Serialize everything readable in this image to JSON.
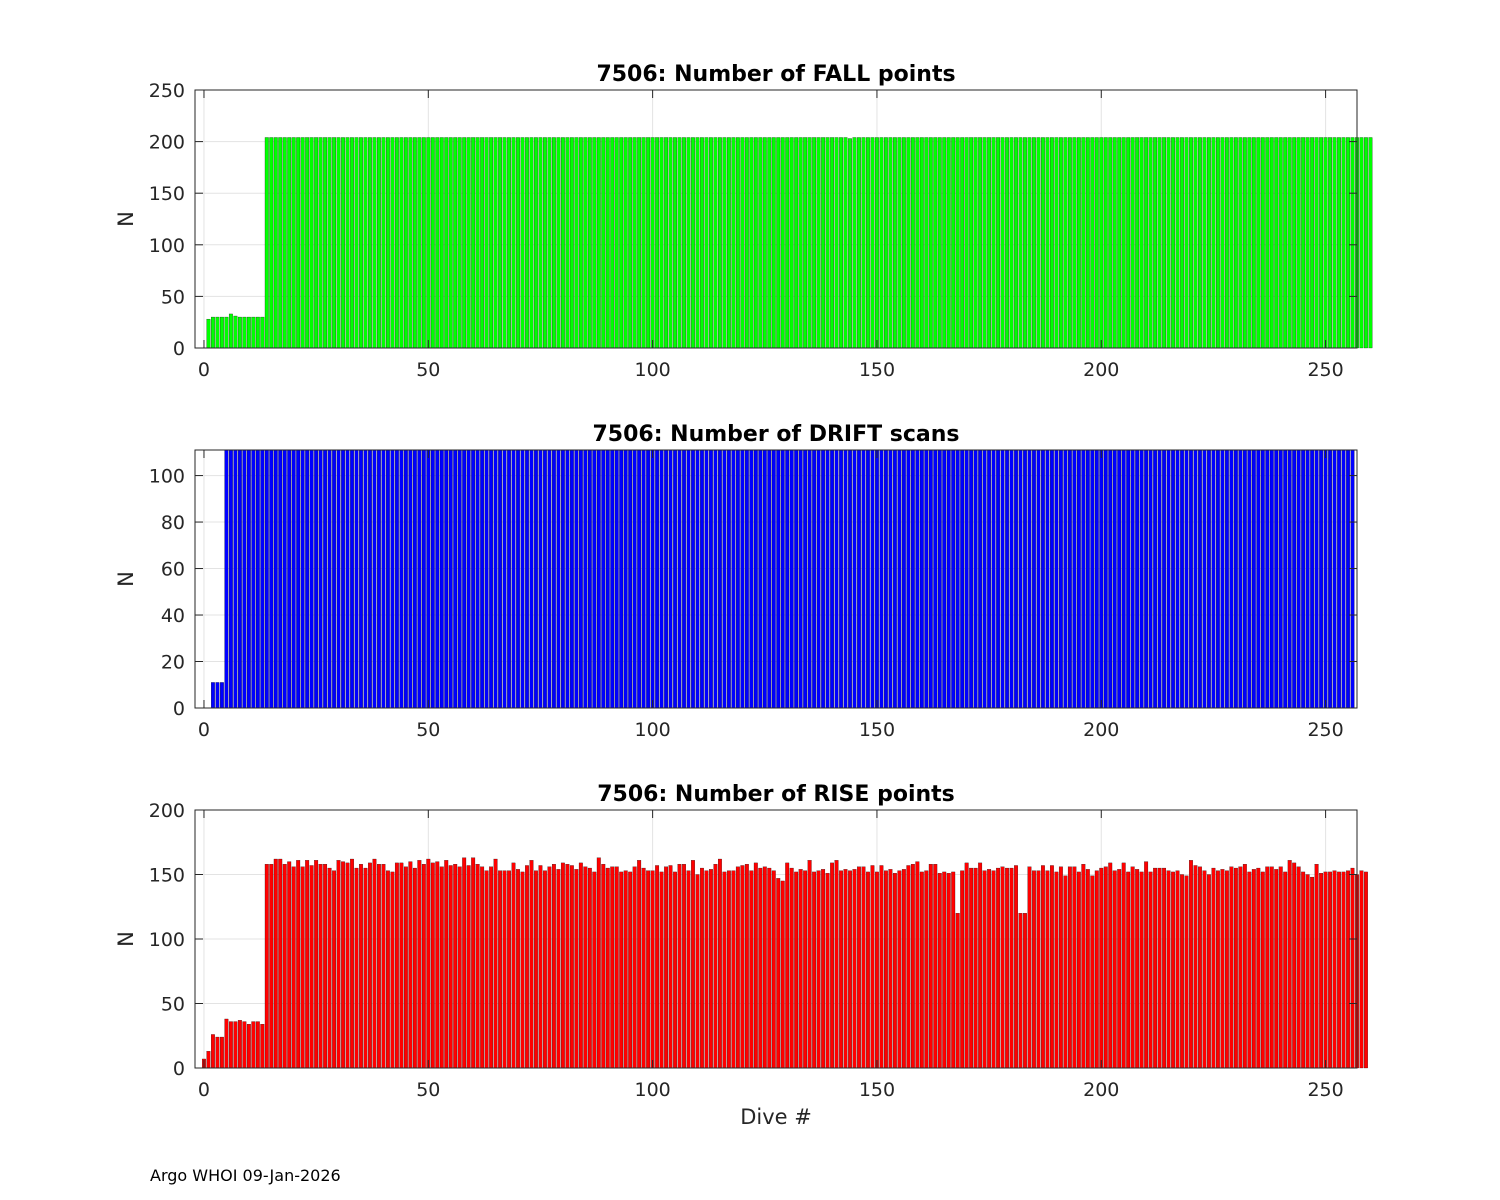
{
  "footer": "Argo WHOI 09-Jan-2026",
  "chart_data": [
    {
      "type": "bar",
      "title": "7506: Number of FALL points",
      "xlabel": "",
      "ylabel": "N",
      "color": "#00ff00",
      "xlim": [
        -2,
        257
      ],
      "ylim": [
        0,
        250
      ],
      "xticks": [
        0,
        50,
        100,
        150,
        200,
        250
      ],
      "yticks": [
        0,
        50,
        100,
        150,
        200,
        250
      ],
      "grid": true,
      "x_start": 1,
      "values": [
        28,
        30,
        30,
        30,
        30,
        33,
        31,
        30,
        30,
        30,
        30,
        30,
        30,
        204,
        204,
        204,
        204,
        204,
        204,
        204,
        204,
        204,
        204,
        204,
        204,
        204,
        204,
        204,
        204,
        204,
        204,
        204,
        204,
        204,
        204,
        204,
        204,
        204,
        204,
        204,
        204,
        204,
        204,
        204,
        204,
        204,
        204,
        204,
        204,
        204,
        204,
        204,
        204,
        204,
        204,
        204,
        204,
        204,
        204,
        204,
        204,
        204,
        204,
        204,
        204,
        204,
        204,
        204,
        204,
        204,
        204,
        204,
        204,
        204,
        204,
        204,
        204,
        204,
        204,
        204,
        204,
        204,
        204,
        204,
        204,
        204,
        204,
        204,
        204,
        204,
        204,
        204,
        204,
        204,
        204,
        204,
        204,
        204,
        204,
        204,
        204,
        204,
        204,
        204,
        204,
        204,
        204,
        204,
        204,
        204,
        204,
        204,
        204,
        204,
        204,
        204,
        204,
        204,
        204,
        204,
        204,
        204,
        204,
        204,
        204,
        204,
        204,
        204,
        204,
        204,
        204,
        204,
        204,
        204,
        204,
        204,
        204,
        204,
        204,
        204,
        204,
        204,
        204,
        203,
        204,
        204,
        204,
        204,
        204,
        204,
        204,
        204,
        204,
        204,
        204,
        204,
        204,
        204,
        204,
        204,
        204,
        204,
        204,
        204,
        204,
        204,
        204,
        204,
        204,
        204,
        204,
        204,
        204,
        204,
        204,
        204,
        204,
        204,
        204,
        204,
        204,
        204,
        204,
        204,
        204,
        204,
        204,
        204,
        204,
        204,
        204,
        204,
        204,
        204,
        204,
        204,
        204,
        204,
        204,
        204,
        204,
        204,
        204,
        204,
        204,
        204,
        204,
        204,
        204,
        204,
        204,
        204,
        204,
        204,
        204,
        204,
        204,
        204,
        204,
        204,
        204,
        204,
        204,
        204,
        204,
        204,
        204,
        204,
        204,
        204,
        204,
        204,
        204,
        204,
        204,
        204,
        204,
        204,
        204,
        204,
        204,
        204,
        204,
        204,
        204,
        204,
        204,
        204,
        204,
        204,
        204,
        204,
        204,
        204,
        204,
        204,
        204,
        204,
        204,
        204
      ]
    },
    {
      "type": "bar",
      "title": "7506: Number of DRIFT scans",
      "xlabel": "",
      "ylabel": "N",
      "color": "#0000ff",
      "xlim": [
        -2,
        257
      ],
      "ylim": [
        0,
        111
      ],
      "xticks": [
        0,
        50,
        100,
        150,
        200,
        250
      ],
      "yticks": [
        0,
        20,
        40,
        60,
        80,
        100
      ],
      "grid": true,
      "x_start": 1,
      "values": [
        0,
        11,
        11,
        11,
        111,
        111,
        111,
        111,
        111,
        111,
        111,
        111,
        111,
        111,
        111,
        111,
        111,
        111,
        111,
        111,
        111,
        111,
        111,
        111,
        111,
        111,
        111,
        111,
        111,
        111,
        111,
        111,
        111,
        111,
        111,
        111,
        111,
        111,
        111,
        111,
        111,
        111,
        111,
        111,
        111,
        111,
        111,
        111,
        111,
        111,
        111,
        111,
        111,
        111,
        111,
        111,
        111,
        111,
        111,
        111,
        111,
        111,
        111,
        111,
        111,
        111,
        111,
        111,
        111,
        111,
        111,
        111,
        111,
        111,
        111,
        111,
        111,
        111,
        111,
        111,
        111,
        111,
        111,
        111,
        111,
        111,
        111,
        111,
        111,
        111,
        111,
        111,
        111,
        111,
        111,
        111,
        111,
        111,
        111,
        111,
        111,
        111,
        111,
        111,
        111,
        111,
        111,
        111,
        111,
        111,
        111,
        111,
        111,
        111,
        111,
        111,
        111,
        111,
        111,
        111,
        111,
        111,
        111,
        111,
        111,
        111,
        111,
        111,
        111,
        111,
        111,
        111,
        111,
        111,
        111,
        111,
        111,
        111,
        111,
        111,
        111,
        111,
        111,
        111,
        111,
        111,
        111,
        111,
        111,
        111,
        111,
        111,
        111,
        111,
        111,
        111,
        111,
        111,
        111,
        111,
        111,
        111,
        111,
        111,
        111,
        111,
        111,
        111,
        111,
        111,
        111,
        111,
        111,
        111,
        111,
        111,
        111,
        111,
        111,
        111,
        111,
        111,
        111,
        111,
        111,
        111,
        111,
        111,
        111,
        111,
        111,
        111,
        111,
        111,
        111,
        111,
        111,
        111,
        111,
        111,
        111,
        111,
        111,
        111,
        111,
        111,
        111,
        111,
        111,
        111,
        111,
        111,
        111,
        111,
        111,
        111,
        111,
        111,
        111,
        111,
        111,
        111,
        111,
        111,
        111,
        111,
        111,
        111,
        111,
        111,
        111,
        111,
        111,
        111,
        111,
        111,
        111,
        111,
        111,
        111,
        111,
        111,
        111,
        111,
        111,
        111,
        111,
        111,
        111,
        111,
        111,
        111,
        111,
        111,
        111,
        111
      ]
    },
    {
      "type": "bar",
      "title": "7506: Number of RISE points",
      "xlabel": "Dive #",
      "ylabel": "N",
      "color": "#ff0000",
      "xlim": [
        -2,
        257
      ],
      "ylim": [
        0,
        200
      ],
      "xticks": [
        0,
        50,
        100,
        150,
        200,
        250
      ],
      "yticks": [
        0,
        50,
        100,
        150,
        200
      ],
      "grid": true,
      "x_start": 0,
      "values": [
        7,
        13,
        26,
        24,
        24,
        38,
        36,
        36,
        37,
        36,
        34,
        36,
        36,
        34,
        158,
        158,
        162,
        162,
        158,
        160,
        156,
        161,
        156,
        161,
        157,
        161,
        158,
        158,
        155,
        153,
        161,
        160,
        159,
        162,
        155,
        158,
        155,
        159,
        162,
        158,
        158,
        153,
        152,
        159,
        159,
        156,
        160,
        155,
        161,
        158,
        162,
        159,
        160,
        156,
        161,
        157,
        158,
        156,
        163,
        157,
        163,
        158,
        156,
        153,
        156,
        162,
        153,
        153,
        153,
        159,
        154,
        152,
        157,
        161,
        153,
        157,
        153,
        156,
        158,
        154,
        159,
        158,
        157,
        154,
        159,
        156,
        155,
        152,
        163,
        158,
        155,
        156,
        156,
        152,
        153,
        152,
        156,
        161,
        155,
        153,
        153,
        157,
        152,
        156,
        157,
        152,
        158,
        158,
        153,
        161,
        150,
        155,
        153,
        154,
        158,
        162,
        152,
        153,
        153,
        156,
        157,
        158,
        153,
        159,
        155,
        156,
        155,
        153,
        147,
        145,
        159,
        155,
        152,
        154,
        153,
        161,
        152,
        153,
        154,
        151,
        159,
        161,
        153,
        154,
        153,
        154,
        156,
        156,
        152,
        157,
        152,
        157,
        153,
        154,
        151,
        153,
        154,
        157,
        158,
        160,
        152,
        153,
        158,
        158,
        151,
        152,
        151,
        152,
        120,
        153,
        159,
        155,
        155,
        159,
        153,
        154,
        153,
        155,
        156,
        155,
        155,
        157,
        120,
        120,
        156,
        153,
        153,
        157,
        153,
        157,
        152,
        156,
        149,
        156,
        156,
        152,
        158,
        154,
        149,
        153,
        155,
        156,
        159,
        153,
        154,
        159,
        152,
        156,
        154,
        152,
        160,
        152,
        155,
        155,
        155,
        153,
        152,
        153,
        150,
        149,
        161,
        157,
        156,
        153,
        150,
        155,
        153,
        154,
        153,
        156,
        155,
        156,
        158,
        152,
        154,
        155,
        152,
        156,
        156,
        154,
        156,
        152,
        161,
        159,
        156,
        152,
        150,
        148,
        158,
        151,
        152,
        152,
        153,
        152,
        152,
        153,
        155,
        150,
        153,
        152
      ]
    }
  ]
}
